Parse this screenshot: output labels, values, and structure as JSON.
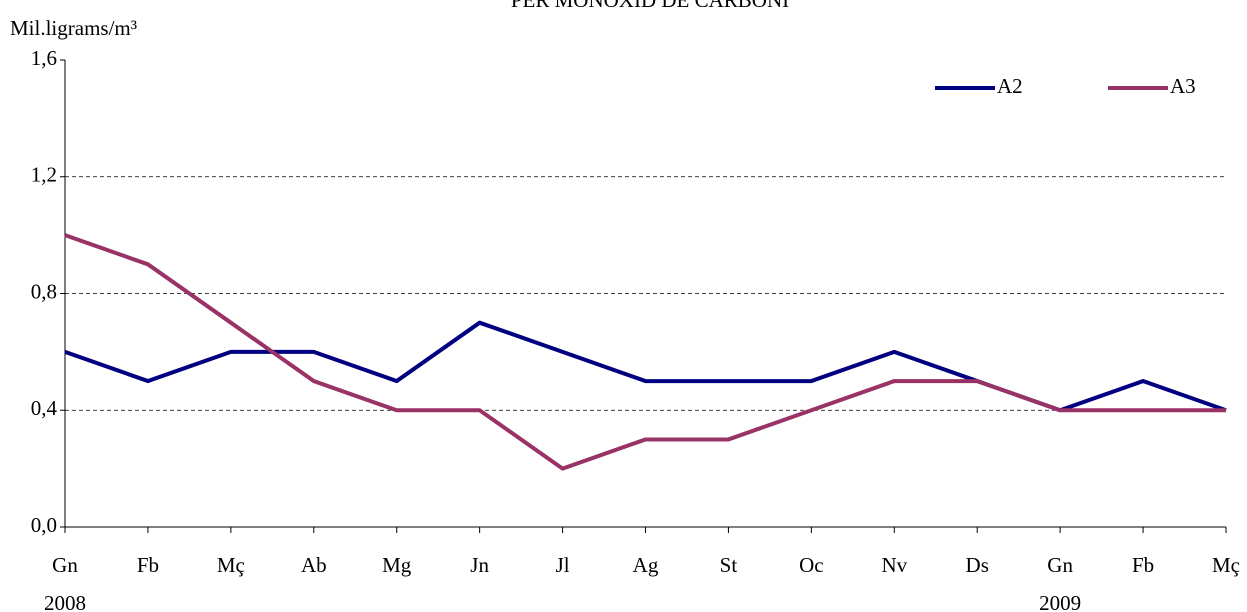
{
  "chart_data": {
    "type": "line",
    "title": "PER MONÒXID DE CARBONI",
    "y_label": "Mil.ligrams/m³",
    "categories": [
      "Gn",
      "Fb",
      "Mç",
      "Ab",
      "Mg",
      "Jn",
      "Jl",
      "Ag",
      "St",
      "Oc",
      "Nv",
      "Ds",
      "Gn",
      "Fb",
      "Mç"
    ],
    "years": [
      "2008",
      null,
      null,
      null,
      null,
      null,
      null,
      null,
      null,
      null,
      null,
      null,
      "2009",
      null,
      null
    ],
    "series": [
      {
        "name": "A2",
        "color": "#000080",
        "values": [
          0.6,
          0.5,
          0.6,
          0.6,
          0.5,
          0.7,
          0.6,
          0.5,
          0.5,
          0.5,
          0.6,
          0.5,
          0.4,
          0.5,
          0.4
        ]
      },
      {
        "name": "A3",
        "color": "#993366",
        "values": [
          1.0,
          0.9,
          0.7,
          0.5,
          0.4,
          0.4,
          0.2,
          0.3,
          0.3,
          0.4,
          0.5,
          0.5,
          0.4,
          0.4,
          0.4
        ]
      }
    ],
    "ylim": [
      0,
      1.6
    ],
    "yticks": [
      {
        "value": 0,
        "label": "0,0"
      },
      {
        "value": 0.4,
        "label": "0,4"
      },
      {
        "value": 0.8,
        "label": "0,8"
      },
      {
        "value": 1.2,
        "label": "1,2"
      },
      {
        "value": 1.6,
        "label": "1,6"
      }
    ],
    "grid": true,
    "legend": "top-right"
  }
}
